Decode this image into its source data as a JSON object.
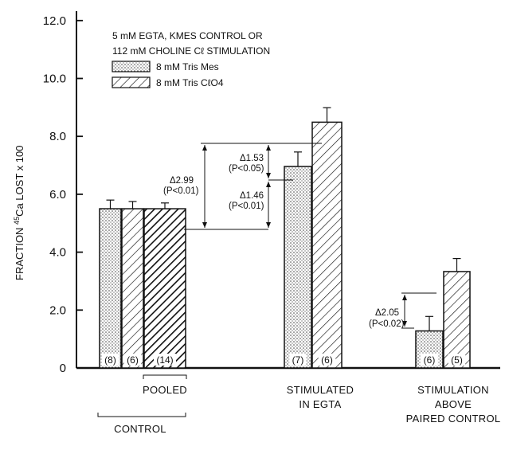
{
  "chart_data": {
    "type": "bar",
    "ylabel_prefix": "FRACTION ",
    "ylabel_sup": "45",
    "ylabel_suffix": "Ca LOST x 100",
    "ylim": [
      0,
      13.0
    ],
    "yticks": [
      "0",
      "2.0",
      "4.0",
      "6.0",
      "8.0",
      "10.0",
      "12.0"
    ],
    "ytick_values": [
      0,
      2,
      4,
      6,
      8,
      10,
      12
    ],
    "legend_title_line1": "5 mM EGTA, KMES CONTROL OR",
    "legend_title_line2": "112 mM CHOLINE Cℓ STIMULATION",
    "series": [
      {
        "name": "8 mM Tris Mes",
        "pattern": "stipple"
      },
      {
        "name": "8 mM Tris CℓO4",
        "pattern": "hatch"
      }
    ],
    "bars": [
      {
        "group": "control",
        "series": "8 mM Tris Mes",
        "value": 5.5,
        "error": 0.3,
        "n": "(8)"
      },
      {
        "group": "control",
        "series": "8 mM Tris CℓO4",
        "value": 5.5,
        "error": 0.25,
        "n": "(6)"
      },
      {
        "group": "pooled",
        "series": "pooled",
        "value": 5.5,
        "error": 0.2,
        "n": "(14)"
      },
      {
        "group": "stimulated",
        "series": "8 mM Tris Mes",
        "value": 6.96,
        "error": 0.5,
        "n": "(7)"
      },
      {
        "group": "stimulated",
        "series": "8 mM Tris CℓO4",
        "value": 8.49,
        "error": 0.5,
        "n": "(6)"
      },
      {
        "group": "above_control",
        "series": "8 mM Tris Mes",
        "value": 1.28,
        "error": 0.5,
        "n": "(6)"
      },
      {
        "group": "above_control",
        "series": "8 mM Tris CℓO4",
        "value": 3.33,
        "error": 0.45,
        "n": "(5)"
      }
    ],
    "group_labels": {
      "pooled": "POOLED",
      "control": "CONTROL",
      "stimulated_l1": "STIMULATED",
      "stimulated_l2": "IN EGTA",
      "above_l1": "STIMULATION",
      "above_l2": "ABOVE",
      "above_l3": "PAIRED CONTROL"
    },
    "annotations": [
      {
        "delta": "Δ2.99",
        "p": "(P<0.01)"
      },
      {
        "delta": "Δ1.53",
        "p": "(P<0.05)"
      },
      {
        "delta": "Δ1.46",
        "p": "(P<0.01)"
      },
      {
        "delta": "Δ2.05",
        "p": "(P<0.02)"
      }
    ]
  }
}
